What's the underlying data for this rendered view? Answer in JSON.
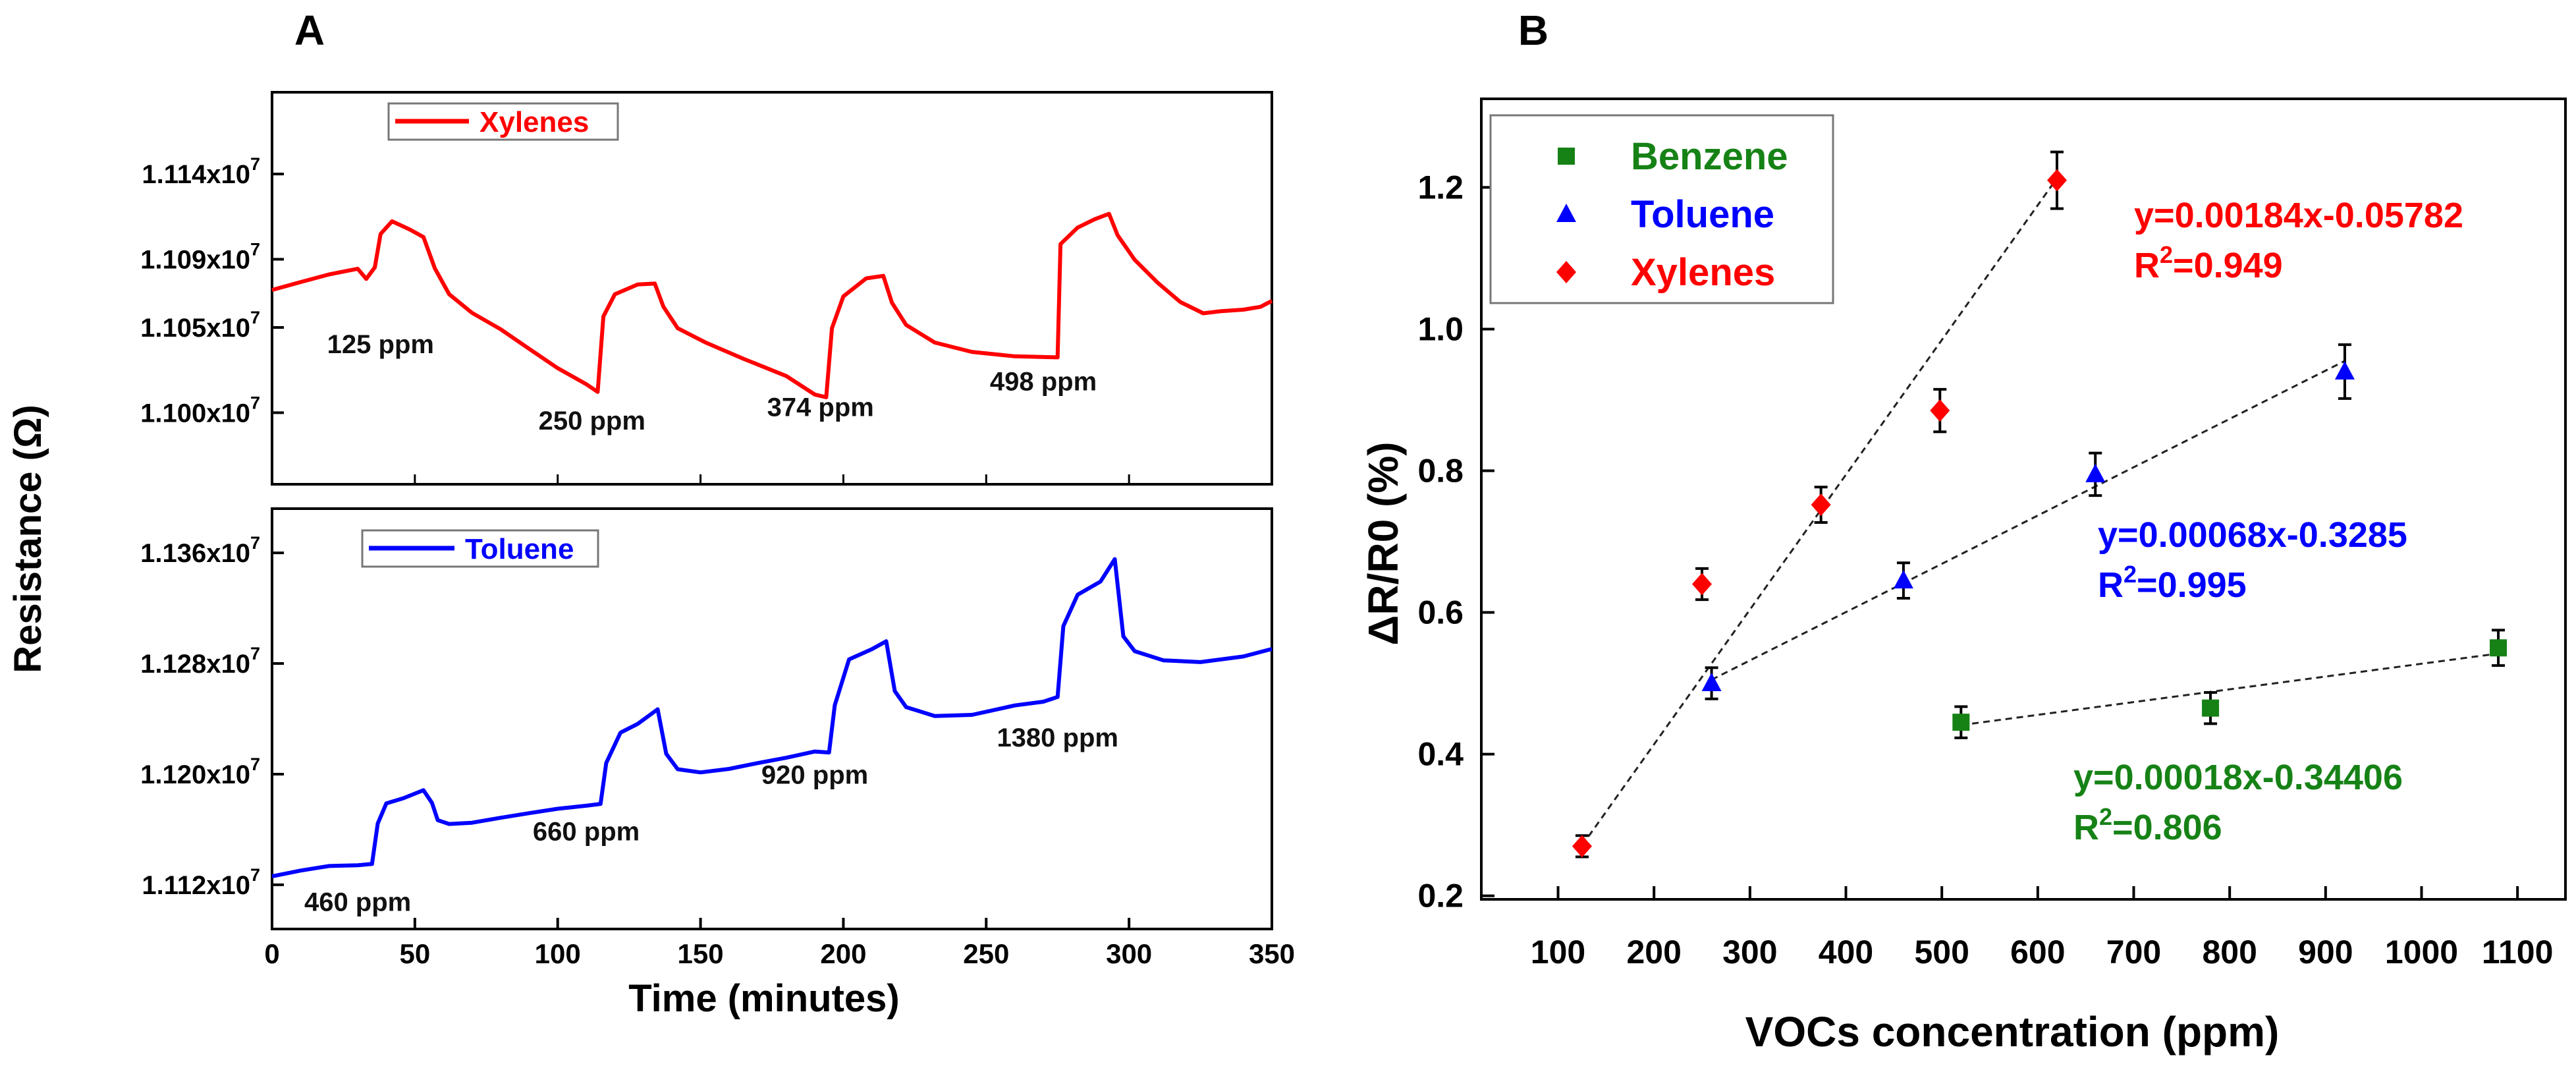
{
  "chart_data": [
    {
      "panel_label": "A",
      "type": "line",
      "ylabel": "Resistance (Ω)",
      "xlabel": "Time (minutes)",
      "xlim": [
        0,
        350
      ],
      "xticks": [
        0,
        50,
        100,
        150,
        200,
        250,
        300,
        350
      ],
      "subplots": [
        {
          "series_name": "Xylenes",
          "color": "#ff0000",
          "ylim": [
            1.0958,
            1.1188
          ],
          "yticks": [
            {
              "mantissa": "1.114",
              "exp": "7",
              "value": 1.114
            },
            {
              "mantissa": "1.109",
              "exp": "7",
              "value": 1.109
            },
            {
              "mantissa": "1.105",
              "exp": "7",
              "value": 1.105
            },
            {
              "mantissa": "1.100",
              "exp": "7",
              "value": 1.1
            }
          ],
          "points": [
            [
              0,
              1.1072
            ],
            [
              10,
              1.1076
            ],
            [
              20,
              1.108
            ],
            [
              30,
              1.1083
            ],
            [
              33,
              1.1077
            ],
            [
              36,
              1.1084
            ],
            [
              38,
              1.1104
            ],
            [
              42,
              1.1112
            ],
            [
              48,
              1.1108
            ],
            [
              53,
              1.1104
            ],
            [
              57,
              1.1086
            ],
            [
              62,
              1.1071
            ],
            [
              70,
              1.106
            ],
            [
              80,
              1.105
            ],
            [
              90,
              1.1038
            ],
            [
              100,
              1.1026
            ],
            [
              110,
              1.1016
            ],
            [
              114,
              1.1011
            ],
            [
              116,
              1.1055
            ],
            [
              120,
              1.1068
            ],
            [
              128,
              1.1074
            ],
            [
              134,
              1.1075
            ],
            [
              137,
              1.1062
            ],
            [
              142,
              1.105
            ],
            [
              152,
              1.1042
            ],
            [
              165,
              1.1033
            ],
            [
              180,
              1.1023
            ],
            [
              190,
              1.1012
            ],
            [
              194,
              1.101
            ],
            [
              196,
              1.105
            ],
            [
              200,
              1.1068
            ],
            [
              208,
              1.1078
            ],
            [
              214,
              1.1079
            ],
            [
              217,
              1.1063
            ],
            [
              222,
              1.105
            ],
            [
              232,
              1.104
            ],
            [
              245,
              1.1035
            ],
            [
              260,
              1.1033
            ],
            [
              275,
              1.1033
            ],
            [
              276,
              1.11
            ],
            [
              282,
              1.111
            ],
            [
              288,
              1.1115
            ],
            [
              293,
              1.1118
            ],
            [
              296,
              1.1105
            ],
            [
              302,
              1.109
            ],
            [
              310,
              1.1076
            ],
            [
              318,
              1.1064
            ],
            [
              326,
              1.1057
            ],
            [
              332,
              1.1058
            ],
            [
              340,
              1.1059
            ],
            [
              346,
              1.1061
            ],
            [
              350,
              1.1065
            ]
          ],
          "annotations": [
            {
              "text": "125 ppm",
              "x": 38,
              "y": 1.1035
            },
            {
              "text": "250 ppm",
              "x": 112,
              "y": 1.099
            },
            {
              "text": "374 ppm",
              "x": 192,
              "y": 1.0998
            },
            {
              "text": "498 ppm",
              "x": 270,
              "y": 1.1013
            }
          ]
        },
        {
          "series_name": "Toluene",
          "color": "#0000ff",
          "ylim": [
            1.1088,
            1.1392
          ],
          "yticks": [
            {
              "mantissa": "1.136",
              "exp": "7",
              "value": 1.136
            },
            {
              "mantissa": "1.128",
              "exp": "7",
              "value": 1.128
            },
            {
              "mantissa": "1.120",
              "exp": "7",
              "value": 1.12
            },
            {
              "mantissa": "1.112",
              "exp": "7",
              "value": 1.112
            }
          ],
          "points": [
            [
              0,
              1.1126
            ],
            [
              10,
              1.1131
            ],
            [
              20,
              1.1135
            ],
            [
              30,
              1.1136
            ],
            [
              35,
              1.1137
            ],
            [
              37,
              1.1166
            ],
            [
              40,
              1.118
            ],
            [
              46,
              1.1183
            ],
            [
              53,
              1.1188
            ],
            [
              56,
              1.1178
            ],
            [
              58,
              1.1165
            ],
            [
              62,
              1.1162
            ],
            [
              70,
              1.1163
            ],
            [
              80,
              1.1167
            ],
            [
              90,
              1.1171
            ],
            [
              100,
              1.1175
            ],
            [
              110,
              1.1178
            ],
            [
              115,
              1.118
            ],
            [
              117,
              1.121
            ],
            [
              122,
              1.1232
            ],
            [
              128,
              1.1238
            ],
            [
              135,
              1.1248
            ],
            [
              138,
              1.1215
            ],
            [
              142,
              1.1203
            ],
            [
              150,
              1.12
            ],
            [
              160,
              1.1202
            ],
            [
              170,
              1.1206
            ],
            [
              180,
              1.121
            ],
            [
              190,
              1.1215
            ],
            [
              195,
              1.1215
            ],
            [
              197,
              1.125
            ],
            [
              202,
              1.1284
            ],
            [
              210,
              1.1292
            ],
            [
              215,
              1.1298
            ],
            [
              218,
              1.1262
            ],
            [
              222,
              1.125
            ],
            [
              232,
              1.1243
            ],
            [
              245,
              1.1243
            ],
            [
              260,
              1.1249
            ],
            [
              270,
              1.1251
            ],
            [
              275,
              1.1254
            ],
            [
              277,
              1.1305
            ],
            [
              282,
              1.1328
            ],
            [
              290,
              1.1338
            ],
            [
              295,
              1.1355
            ],
            [
              298,
              1.13
            ],
            [
              302,
              1.129
            ],
            [
              312,
              1.1284
            ],
            [
              325,
              1.1283
            ],
            [
              340,
              1.1287
            ],
            [
              350,
              1.1292
            ]
          ],
          "annotations": [
            {
              "text": "460 ppm",
              "x": 30,
              "y": 1.1101
            },
            {
              "text": "660 ppm",
              "x": 110,
              "y": 1.1152
            },
            {
              "text": "920 ppm",
              "x": 190,
              "y": 1.1193
            },
            {
              "text": "1380 ppm",
              "x": 275,
              "y": 1.122
            }
          ]
        }
      ]
    },
    {
      "panel_label": "B",
      "type": "scatter",
      "xlabel": "VOCs concentration (ppm)",
      "ylabel": "ΔR/R0 (%)",
      "xlim": [
        20,
        1150
      ],
      "ylim": [
        0.195,
        1.325
      ],
      "xticks": [
        100,
        200,
        300,
        400,
        500,
        600,
        700,
        800,
        900,
        1000,
        1100
      ],
      "yticks": [
        "0.2",
        "0.4",
        "0.6",
        "0.8",
        "1.0",
        "1.2"
      ],
      "legend": {
        "position": "top-left"
      },
      "series": [
        {
          "name": "Benzene",
          "color": "#168216",
          "marker": "square",
          "points": [
            [
              520,
              0.445,
              0.022
            ],
            [
              780,
              0.465,
              0.022
            ],
            [
              1080,
              0.55,
              0.025
            ]
          ],
          "fit_x": [
            520,
            1080
          ],
          "fit_y": [
            0.441,
            0.542
          ],
          "equation": "y=0.00018x-0.34406",
          "r2_label": "R",
          "r2_exp": "2",
          "r2_value": "=0.806"
        },
        {
          "name": "Toluene",
          "color": "#0000ff",
          "marker": "triangle",
          "points": [
            [
              260,
              0.5,
              0.022
            ],
            [
              460,
              0.645,
              0.025
            ],
            [
              660,
              0.795,
              0.03
            ],
            [
              920,
              0.94,
              0.038
            ]
          ],
          "fit_x": [
            260,
            920
          ],
          "fit_y": [
            0.505,
            0.955
          ],
          "equation": "y=0.00068x-0.3285",
          "r2_label": "R",
          "r2_exp": "2",
          "r2_value": "=0.995"
        },
        {
          "name": "Xylenes",
          "color": "#ff0000",
          "marker": "diamond",
          "points": [
            [
              125,
              0.27,
              0.015
            ],
            [
              250,
              0.64,
              0.022
            ],
            [
              374,
              0.752,
              0.025
            ],
            [
              498,
              0.885,
              0.03
            ],
            [
              620,
              1.21,
              0.04
            ]
          ],
          "fit_x": [
            125,
            620
          ],
          "fit_y": [
            0.271,
            1.213
          ],
          "equation": "y=0.00184x-0.05782",
          "r2_label": "R",
          "r2_exp": "2",
          "r2_value": "=0.949"
        }
      ]
    }
  ]
}
